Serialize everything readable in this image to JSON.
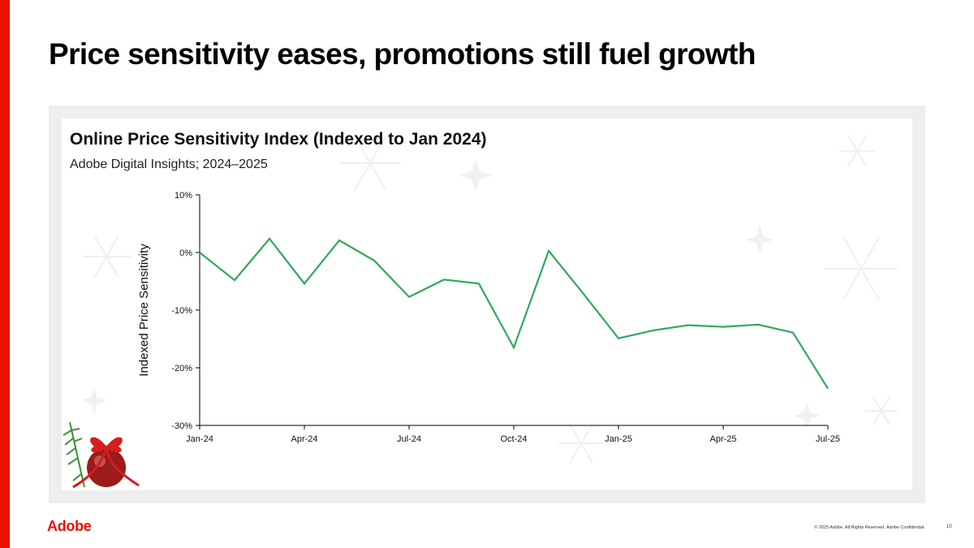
{
  "slide": {
    "title": "Price sensitivity eases, promotions still fuel growth",
    "brand": "Adobe",
    "copyright": "© 2025 Adobe. All Rights Reserved. Adobe Confidential.",
    "page_number": "10"
  },
  "colors": {
    "accent": "#eb1000",
    "line": "#2eaa5c",
    "panel": "#eeeeee"
  },
  "chart_data": {
    "type": "line",
    "title": "Online Price Sensitivity Index (Indexed to Jan 2024)",
    "subtitle": "Adobe Digital Insights; 2024–2025",
    "xlabel": "",
    "ylabel": "Indexed Price Sensitivity",
    "ylim": [
      -30,
      10
    ],
    "yticks": [
      10,
      0,
      -10,
      -20,
      -30
    ],
    "ytick_labels": [
      "10%",
      "0%",
      "-10%",
      "-20%",
      "-30%"
    ],
    "x": [
      "Jan-24",
      "Feb-24",
      "Mar-24",
      "Apr-24",
      "May-24",
      "Jun-24",
      "Jul-24",
      "Aug-24",
      "Sep-24",
      "Oct-24",
      "Nov-24",
      "Dec-24",
      "Jan-25",
      "Feb-25",
      "Mar-25",
      "Apr-25",
      "May-25",
      "Jun-25",
      "Jul-25"
    ],
    "xtick_labels": [
      "Jan-24",
      "Apr-24",
      "Jul-24",
      "Oct-24",
      "Jan-25",
      "Apr-25",
      "Jul-25"
    ],
    "grid": false,
    "legend": "none",
    "series": [
      {
        "name": "Online Price Sensitivity Index",
        "values": [
          0,
          -4.8,
          2.4,
          -5.4,
          2.1,
          -1.4,
          -7.7,
          -4.7,
          -5.4,
          -16.5,
          0.3,
          -7.2,
          -14.9,
          -13.5,
          -12.6,
          -12.9,
          -12.5,
          -13.9,
          -23.6
        ]
      }
    ]
  }
}
